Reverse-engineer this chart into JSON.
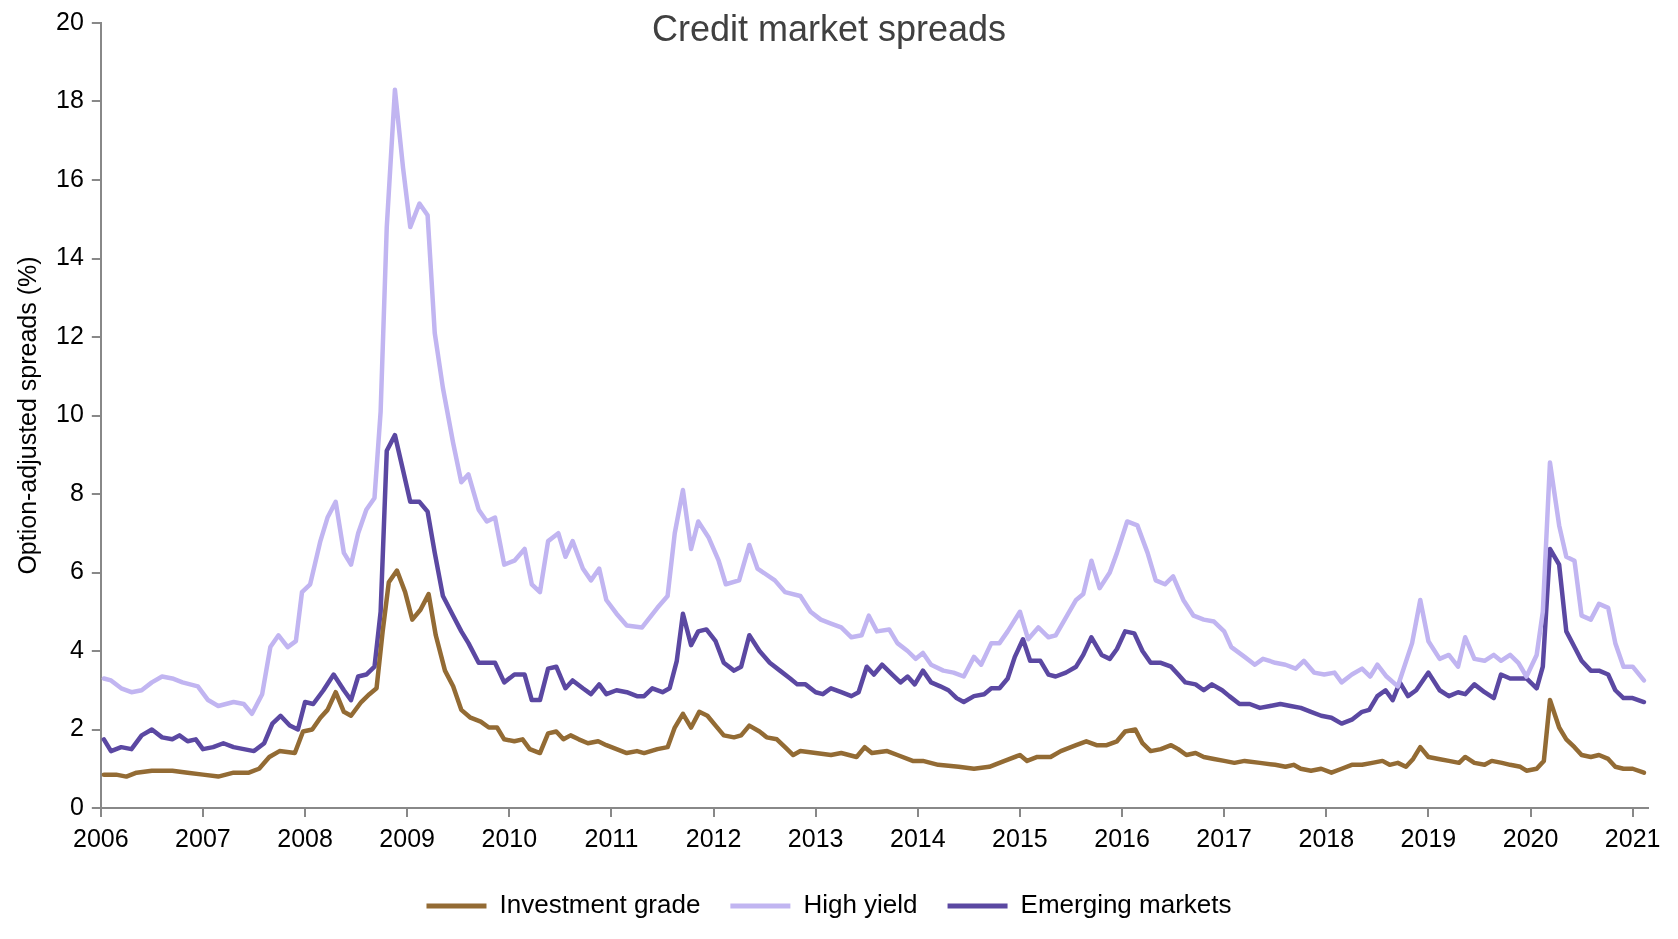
{
  "chart_data": {
    "type": "line",
    "title": "Credit market spreads",
    "ylabel": "Option-adjusted spreads (%)",
    "xlim": [
      2006,
      2021.15
    ],
    "xticks": [
      2006,
      2007,
      2008,
      2009,
      2010,
      2011,
      2012,
      2013,
      2014,
      2015,
      2016,
      2017,
      2018,
      2019,
      2020,
      2021
    ],
    "ylim": [
      0,
      20
    ],
    "yticks": [
      0,
      2,
      4,
      6,
      8,
      10,
      12,
      14,
      16,
      18,
      20
    ],
    "grid": false,
    "legend": "bottom",
    "line_style": "solid",
    "series": [
      {
        "name": "Investment grade",
        "color": "#936b34",
        "x": [
          2006.03,
          2006.15,
          2006.25,
          2006.35,
          2006.5,
          2006.7,
          2006.85,
          2007.0,
          2007.15,
          2007.3,
          2007.45,
          2007.55,
          2007.65,
          2007.75,
          2007.9,
          2007.98,
          2008.07,
          2008.15,
          2008.22,
          2008.3,
          2008.38,
          2008.45,
          2008.55,
          2008.63,
          2008.7,
          2008.76,
          2008.82,
          2008.9,
          2008.98,
          2009.05,
          2009.13,
          2009.21,
          2009.28,
          2009.37,
          2009.45,
          2009.53,
          2009.62,
          2009.72,
          2009.8,
          2009.88,
          2009.95,
          2010.05,
          2010.13,
          2010.2,
          2010.3,
          2010.38,
          2010.46,
          2010.53,
          2010.6,
          2010.68,
          2010.77,
          2010.87,
          2010.95,
          2011.05,
          2011.15,
          2011.25,
          2011.32,
          2011.45,
          2011.55,
          2011.62,
          2011.7,
          2011.78,
          2011.86,
          2011.94,
          2012.02,
          2012.1,
          2012.2,
          2012.27,
          2012.35,
          2012.45,
          2012.52,
          2012.62,
          2012.7,
          2012.78,
          2012.85,
          2013.0,
          2013.15,
          2013.25,
          2013.4,
          2013.48,
          2013.55,
          2013.7,
          2013.8,
          2013.95,
          2014.05,
          2014.2,
          2014.4,
          2014.55,
          2014.7,
          2014.85,
          2015.0,
          2015.07,
          2015.17,
          2015.3,
          2015.4,
          2015.55,
          2015.65,
          2015.75,
          2015.85,
          2015.95,
          2016.03,
          2016.13,
          2016.2,
          2016.28,
          2016.38,
          2016.48,
          2016.55,
          2016.63,
          2016.72,
          2016.8,
          2016.9,
          2017.0,
          2017.1,
          2017.2,
          2017.35,
          2017.5,
          2017.6,
          2017.68,
          2017.75,
          2017.85,
          2017.95,
          2018.05,
          2018.15,
          2018.25,
          2018.35,
          2018.45,
          2018.55,
          2018.62,
          2018.7,
          2018.78,
          2018.85,
          2018.92,
          2019.0,
          2019.1,
          2019.2,
          2019.3,
          2019.36,
          2019.45,
          2019.55,
          2019.62,
          2019.72,
          2019.8,
          2019.9,
          2019.96,
          2020.06,
          2020.13,
          2020.19,
          2020.28,
          2020.35,
          2020.43,
          2020.5,
          2020.59,
          2020.67,
          2020.76,
          2020.83,
          2020.91,
          2021.0,
          2021.11
        ],
        "values": [
          0.85,
          0.85,
          0.8,
          0.9,
          0.95,
          0.95,
          0.9,
          0.85,
          0.8,
          0.9,
          0.9,
          1.0,
          1.3,
          1.45,
          1.4,
          1.95,
          2.0,
          2.3,
          2.5,
          2.95,
          2.45,
          2.35,
          2.7,
          2.9,
          3.05,
          4.5,
          5.75,
          6.05,
          5.5,
          4.8,
          5.05,
          5.45,
          4.4,
          3.5,
          3.1,
          2.5,
          2.3,
          2.2,
          2.05,
          2.05,
          1.75,
          1.7,
          1.75,
          1.5,
          1.4,
          1.9,
          1.95,
          1.75,
          1.85,
          1.75,
          1.65,
          1.7,
          1.6,
          1.5,
          1.4,
          1.45,
          1.4,
          1.5,
          1.55,
          2.05,
          2.4,
          2.05,
          2.45,
          2.35,
          2.1,
          1.85,
          1.8,
          1.85,
          2.1,
          1.95,
          1.8,
          1.75,
          1.55,
          1.35,
          1.45,
          1.4,
          1.35,
          1.4,
          1.3,
          1.55,
          1.4,
          1.45,
          1.35,
          1.2,
          1.2,
          1.1,
          1.05,
          1.0,
          1.05,
          1.2,
          1.35,
          1.2,
          1.3,
          1.3,
          1.45,
          1.6,
          1.7,
          1.6,
          1.6,
          1.7,
          1.95,
          2.0,
          1.65,
          1.45,
          1.5,
          1.6,
          1.5,
          1.35,
          1.4,
          1.3,
          1.25,
          1.2,
          1.15,
          1.2,
          1.15,
          1.1,
          1.05,
          1.1,
          1.0,
          0.95,
          1.0,
          0.9,
          1.0,
          1.1,
          1.1,
          1.15,
          1.2,
          1.1,
          1.15,
          1.05,
          1.25,
          1.55,
          1.3,
          1.25,
          1.2,
          1.15,
          1.3,
          1.15,
          1.1,
          1.2,
          1.15,
          1.1,
          1.05,
          0.95,
          1.0,
          1.2,
          2.75,
          2.05,
          1.75,
          1.55,
          1.35,
          1.3,
          1.35,
          1.25,
          1.05,
          1.0,
          1.0,
          0.9
        ]
      },
      {
        "name": "High yield",
        "color": "#c1b5f1",
        "x": [
          2006.03,
          2006.1,
          2006.2,
          2006.3,
          2006.4,
          2006.5,
          2006.6,
          2006.7,
          2006.8,
          2006.95,
          2007.05,
          2007.15,
          2007.3,
          2007.4,
          2007.48,
          2007.58,
          2007.66,
          2007.74,
          2007.83,
          2007.91,
          2007.97,
          2008.05,
          2008.15,
          2008.22,
          2008.3,
          2008.38,
          2008.45,
          2008.52,
          2008.6,
          2008.68,
          2008.74,
          2008.8,
          2008.88,
          2008.96,
          2009.03,
          2009.12,
          2009.2,
          2009.27,
          2009.35,
          2009.45,
          2009.53,
          2009.6,
          2009.7,
          2009.78,
          2009.86,
          2009.95,
          2010.05,
          2010.15,
          2010.22,
          2010.3,
          2010.38,
          2010.48,
          2010.55,
          2010.62,
          2010.72,
          2010.8,
          2010.88,
          2010.95,
          2011.05,
          2011.15,
          2011.3,
          2011.45,
          2011.55,
          2011.62,
          2011.7,
          2011.78,
          2011.85,
          2011.95,
          2012.05,
          2012.12,
          2012.25,
          2012.35,
          2012.43,
          2012.6,
          2012.7,
          2012.85,
          2012.95,
          2013.05,
          2013.15,
          2013.25,
          2013.35,
          2013.45,
          2013.52,
          2013.6,
          2013.72,
          2013.8,
          2013.9,
          2013.98,
          2014.05,
          2014.13,
          2014.25,
          2014.35,
          2014.45,
          2014.55,
          2014.62,
          2014.72,
          2014.8,
          2014.88,
          2015.0,
          2015.08,
          2015.18,
          2015.28,
          2015.35,
          2015.45,
          2015.55,
          2015.62,
          2015.7,
          2015.78,
          2015.88,
          2015.95,
          2016.05,
          2016.15,
          2016.25,
          2016.33,
          2016.42,
          2016.5,
          2016.6,
          2016.7,
          2016.8,
          2016.9,
          2017.0,
          2017.07,
          2017.2,
          2017.3,
          2017.38,
          2017.5,
          2017.6,
          2017.7,
          2017.78,
          2017.88,
          2017.98,
          2018.08,
          2018.15,
          2018.25,
          2018.35,
          2018.43,
          2018.5,
          2018.59,
          2018.7,
          2018.84,
          2018.92,
          2019.0,
          2019.11,
          2019.2,
          2019.29,
          2019.36,
          2019.45,
          2019.55,
          2019.64,
          2019.71,
          2019.8,
          2019.88,
          2019.96,
          2020.06,
          2020.12,
          2020.19,
          2020.28,
          2020.35,
          2020.43,
          2020.5,
          2020.59,
          2020.67,
          2020.76,
          2020.83,
          2020.91,
          2021.0,
          2021.11
        ],
        "values": [
          3.3,
          3.25,
          3.05,
          2.95,
          3.0,
          3.2,
          3.35,
          3.3,
          3.2,
          3.1,
          2.75,
          2.6,
          2.7,
          2.65,
          2.4,
          2.9,
          4.1,
          4.4,
          4.1,
          4.25,
          5.5,
          5.7,
          6.8,
          7.4,
          7.8,
          6.5,
          6.2,
          7.0,
          7.6,
          7.9,
          10.1,
          14.8,
          18.3,
          16.3,
          14.8,
          15.4,
          15.1,
          12.1,
          10.7,
          9.3,
          8.3,
          8.5,
          7.6,
          7.3,
          7.4,
          6.2,
          6.3,
          6.6,
          5.7,
          5.5,
          6.8,
          7.0,
          6.4,
          6.8,
          6.1,
          5.8,
          6.1,
          5.3,
          4.95,
          4.65,
          4.6,
          5.1,
          5.4,
          7.0,
          8.1,
          6.6,
          7.3,
          6.9,
          6.3,
          5.7,
          5.8,
          6.7,
          6.1,
          5.8,
          5.5,
          5.4,
          5.0,
          4.8,
          4.7,
          4.6,
          4.35,
          4.4,
          4.9,
          4.5,
          4.55,
          4.2,
          4.0,
          3.8,
          3.95,
          3.65,
          3.5,
          3.45,
          3.35,
          3.85,
          3.65,
          4.2,
          4.2,
          4.5,
          5.0,
          4.3,
          4.6,
          4.35,
          4.4,
          4.85,
          5.3,
          5.45,
          6.3,
          5.6,
          6.0,
          6.5,
          7.3,
          7.2,
          6.5,
          5.8,
          5.7,
          5.9,
          5.3,
          4.9,
          4.8,
          4.75,
          4.5,
          4.1,
          3.85,
          3.65,
          3.8,
          3.7,
          3.65,
          3.55,
          3.75,
          3.45,
          3.4,
          3.45,
          3.2,
          3.4,
          3.55,
          3.35,
          3.65,
          3.35,
          3.1,
          4.2,
          5.3,
          4.25,
          3.8,
          3.9,
          3.6,
          4.35,
          3.8,
          3.75,
          3.9,
          3.75,
          3.9,
          3.7,
          3.35,
          3.9,
          5.0,
          8.8,
          7.2,
          6.4,
          6.3,
          4.9,
          4.8,
          5.2,
          5.1,
          4.2,
          3.6,
          3.6,
          3.25
        ]
      },
      {
        "name": "Emerging markets",
        "color": "#5b48a2",
        "x": [
          2006.03,
          2006.1,
          2006.2,
          2006.3,
          2006.4,
          2006.5,
          2006.6,
          2006.7,
          2006.77,
          2006.85,
          2006.93,
          2007.0,
          2007.1,
          2007.2,
          2007.3,
          2007.4,
          2007.5,
          2007.6,
          2007.68,
          2007.76,
          2007.85,
          2007.93,
          2008.0,
          2008.08,
          2008.18,
          2008.28,
          2008.38,
          2008.45,
          2008.52,
          2008.6,
          2008.68,
          2008.74,
          2008.8,
          2008.88,
          2008.96,
          2009.03,
          2009.12,
          2009.2,
          2009.27,
          2009.35,
          2009.45,
          2009.53,
          2009.6,
          2009.7,
          2009.8,
          2009.86,
          2009.95,
          2010.05,
          2010.15,
          2010.22,
          2010.3,
          2010.38,
          2010.46,
          2010.55,
          2010.62,
          2010.72,
          2010.8,
          2010.88,
          2010.95,
          2011.05,
          2011.15,
          2011.25,
          2011.32,
          2011.4,
          2011.5,
          2011.57,
          2011.64,
          2011.7,
          2011.78,
          2011.85,
          2011.93,
          2012.02,
          2012.1,
          2012.2,
          2012.27,
          2012.35,
          2012.45,
          2012.55,
          2012.65,
          2012.75,
          2012.82,
          2012.9,
          2013.0,
          2013.07,
          2013.15,
          2013.25,
          2013.35,
          2013.42,
          2013.5,
          2013.57,
          2013.65,
          2013.75,
          2013.83,
          2013.9,
          2013.97,
          2014.05,
          2014.13,
          2014.22,
          2014.3,
          2014.38,
          2014.45,
          2014.55,
          2014.65,
          2014.72,
          2014.8,
          2014.88,
          2014.95,
          2015.03,
          2015.1,
          2015.2,
          2015.28,
          2015.35,
          2015.45,
          2015.55,
          2015.62,
          2015.7,
          2015.8,
          2015.88,
          2015.95,
          2016.03,
          2016.12,
          2016.2,
          2016.28,
          2016.38,
          2016.48,
          2016.55,
          2016.62,
          2016.72,
          2016.8,
          2016.88,
          2016.98,
          2017.05,
          2017.15,
          2017.25,
          2017.35,
          2017.45,
          2017.55,
          2017.65,
          2017.75,
          2017.85,
          2017.95,
          2018.05,
          2018.15,
          2018.25,
          2018.35,
          2018.42,
          2018.5,
          2018.58,
          2018.65,
          2018.72,
          2018.8,
          2018.88,
          2019.0,
          2019.11,
          2019.2,
          2019.29,
          2019.36,
          2019.45,
          2019.55,
          2019.64,
          2019.71,
          2019.8,
          2019.88,
          2019.96,
          2020.06,
          2020.12,
          2020.19,
          2020.28,
          2020.35,
          2020.43,
          2020.5,
          2020.59,
          2020.67,
          2020.76,
          2020.83,
          2020.91,
          2021.0,
          2021.11
        ],
        "values": [
          1.75,
          1.45,
          1.55,
          1.5,
          1.85,
          2.0,
          1.8,
          1.75,
          1.85,
          1.7,
          1.75,
          1.5,
          1.55,
          1.65,
          1.55,
          1.5,
          1.45,
          1.65,
          2.15,
          2.35,
          2.1,
          2.0,
          2.7,
          2.65,
          3.0,
          3.4,
          3.0,
          2.75,
          3.35,
          3.4,
          3.6,
          5.0,
          9.1,
          9.5,
          8.6,
          7.8,
          7.8,
          7.55,
          6.5,
          5.4,
          4.9,
          4.5,
          4.2,
          3.7,
          3.7,
          3.7,
          3.2,
          3.4,
          3.4,
          2.75,
          2.75,
          3.55,
          3.6,
          3.05,
          3.25,
          3.05,
          2.9,
          3.15,
          2.9,
          3.0,
          2.95,
          2.85,
          2.85,
          3.05,
          2.95,
          3.05,
          3.75,
          4.95,
          4.15,
          4.5,
          4.55,
          4.25,
          3.7,
          3.5,
          3.6,
          4.4,
          4.0,
          3.7,
          3.5,
          3.3,
          3.15,
          3.15,
          2.95,
          2.9,
          3.05,
          2.95,
          2.85,
          2.95,
          3.6,
          3.4,
          3.65,
          3.4,
          3.2,
          3.35,
          3.15,
          3.5,
          3.2,
          3.1,
          3.0,
          2.8,
          2.7,
          2.85,
          2.9,
          3.05,
          3.05,
          3.3,
          3.85,
          4.3,
          3.75,
          3.75,
          3.4,
          3.35,
          3.45,
          3.6,
          3.9,
          4.35,
          3.9,
          3.8,
          4.05,
          4.5,
          4.45,
          4.0,
          3.7,
          3.7,
          3.6,
          3.4,
          3.2,
          3.15,
          3.0,
          3.15,
          3.0,
          2.85,
          2.65,
          2.65,
          2.55,
          2.6,
          2.65,
          2.6,
          2.55,
          2.45,
          2.35,
          2.3,
          2.15,
          2.25,
          2.45,
          2.5,
          2.85,
          3.0,
          2.75,
          3.2,
          2.85,
          3.0,
          3.45,
          3.0,
          2.85,
          2.95,
          2.9,
          3.15,
          2.95,
          2.8,
          3.4,
          3.3,
          3.3,
          3.3,
          3.05,
          3.6,
          6.6,
          6.2,
          4.5,
          4.1,
          3.75,
          3.5,
          3.5,
          3.4,
          3.0,
          2.8,
          2.8,
          2.7
        ]
      }
    ]
  }
}
